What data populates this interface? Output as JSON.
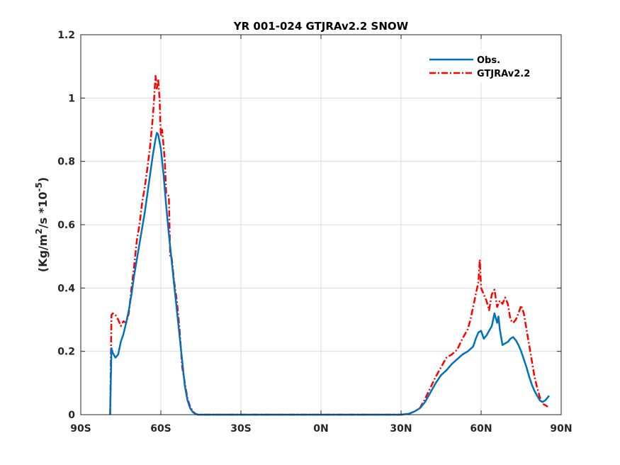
{
  "chart_data": {
    "type": "line",
    "title": "YR 001-024 GTJRAv2.2 SNOW",
    "xlabel": "",
    "ylabel": {
      "prefix": "(Kg/m",
      "sup1": "2",
      "mid": "/s *10",
      "sup2": "-5",
      "suffix": ")"
    },
    "xlim": [
      -90,
      90
    ],
    "ylim": [
      0,
      1.2
    ],
    "grid": true,
    "legend_position": "top-right",
    "x_ticks": [
      {
        "value": -90,
        "label": "90S"
      },
      {
        "value": -60,
        "label": "60S"
      },
      {
        "value": -30,
        "label": "30S"
      },
      {
        "value": 0,
        "label": "0N"
      },
      {
        "value": 30,
        "label": "30N"
      },
      {
        "value": 60,
        "label": "60N"
      },
      {
        "value": 90,
        "label": "90N"
      }
    ],
    "y_ticks": [
      {
        "value": 0,
        "label": "0"
      },
      {
        "value": 0.2,
        "label": "0.2"
      },
      {
        "value": 0.4,
        "label": "0.4"
      },
      {
        "value": 0.6,
        "label": "0.6"
      },
      {
        "value": 0.8,
        "label": "0.8"
      },
      {
        "value": 1.0,
        "label": "1"
      },
      {
        "value": 1.2,
        "label": "1.2"
      }
    ],
    "series": [
      {
        "name": "Obs.",
        "color": "#0072BD",
        "style": "solid",
        "points": [
          [
            -79,
            0
          ],
          [
            -78.5,
            0.21
          ],
          [
            -78,
            0.195
          ],
          [
            -77,
            0.18
          ],
          [
            -76,
            0.19
          ],
          [
            -75,
            0.23
          ],
          [
            -74,
            0.255
          ],
          [
            -73,
            0.29
          ],
          [
            -72,
            0.33
          ],
          [
            -71,
            0.38
          ],
          [
            -70,
            0.44
          ],
          [
            -69,
            0.49
          ],
          [
            -68,
            0.54
          ],
          [
            -67,
            0.59
          ],
          [
            -66,
            0.64
          ],
          [
            -65,
            0.7
          ],
          [
            -64,
            0.76
          ],
          [
            -63,
            0.82
          ],
          [
            -62,
            0.87
          ],
          [
            -61.5,
            0.89
          ],
          [
            -61,
            0.885
          ],
          [
            -60,
            0.84
          ],
          [
            -59,
            0.76
          ],
          [
            -58,
            0.66
          ],
          [
            -57,
            0.57
          ],
          [
            -56,
            0.49
          ],
          [
            -55,
            0.41
          ],
          [
            -54,
            0.33
          ],
          [
            -53,
            0.25
          ],
          [
            -52,
            0.17
          ],
          [
            -51,
            0.09
          ],
          [
            -50,
            0.045
          ],
          [
            -49,
            0.02
          ],
          [
            -48,
            0.008
          ],
          [
            -47,
            0.002
          ],
          [
            -46,
            0
          ],
          [
            -30,
            0
          ],
          [
            0,
            0
          ],
          [
            20,
            0
          ],
          [
            30,
            0
          ],
          [
            33,
            0.003
          ],
          [
            35,
            0.01
          ],
          [
            37,
            0.02
          ],
          [
            39,
            0.04
          ],
          [
            41,
            0.07
          ],
          [
            43,
            0.1
          ],
          [
            45,
            0.125
          ],
          [
            47,
            0.14
          ],
          [
            49,
            0.16
          ],
          [
            51,
            0.175
          ],
          [
            53,
            0.19
          ],
          [
            55,
            0.2
          ],
          [
            57,
            0.215
          ],
          [
            58,
            0.24
          ],
          [
            59,
            0.26
          ],
          [
            60,
            0.265
          ],
          [
            61,
            0.24
          ],
          [
            62,
            0.25
          ],
          [
            63,
            0.265
          ],
          [
            64,
            0.28
          ],
          [
            65,
            0.32
          ],
          [
            66,
            0.29
          ],
          [
            66.5,
            0.31
          ],
          [
            67,
            0.27
          ],
          [
            68,
            0.22
          ],
          [
            69,
            0.225
          ],
          [
            70,
            0.23
          ],
          [
            71,
            0.24
          ],
          [
            72,
            0.245
          ],
          [
            73,
            0.235
          ],
          [
            74,
            0.22
          ],
          [
            75,
            0.2
          ],
          [
            76,
            0.175
          ],
          [
            77,
            0.15
          ],
          [
            78,
            0.12
          ],
          [
            79,
            0.095
          ],
          [
            80,
            0.075
          ],
          [
            81,
            0.06
          ],
          [
            82,
            0.045
          ],
          [
            83,
            0.04
          ],
          [
            84,
            0.045
          ],
          [
            85,
            0.055
          ],
          [
            85.5,
            0.06
          ]
        ]
      },
      {
        "name": "GTJRAv2.2",
        "color": "#FF0000",
        "style": "dashdot",
        "points": [
          [
            -79,
            0
          ],
          [
            -78.5,
            0.315
          ],
          [
            -78,
            0.32
          ],
          [
            -77,
            0.315
          ],
          [
            -76,
            0.3
          ],
          [
            -75,
            0.28
          ],
          [
            -74,
            0.295
          ],
          [
            -73,
            0.29
          ],
          [
            -72,
            0.32
          ],
          [
            -71,
            0.4
          ],
          [
            -70,
            0.47
          ],
          [
            -69,
            0.55
          ],
          [
            -68,
            0.6
          ],
          [
            -67,
            0.67
          ],
          [
            -66,
            0.72
          ],
          [
            -65,
            0.78
          ],
          [
            -64,
            0.85
          ],
          [
            -63,
            0.94
          ],
          [
            -62.5,
            1.0
          ],
          [
            -62,
            1.07
          ],
          [
            -61.5,
            1.03
          ],
          [
            -61,
            1.06
          ],
          [
            -60.5,
            1.0
          ],
          [
            -60,
            0.88
          ],
          [
            -59.5,
            0.9
          ],
          [
            -59,
            0.85
          ],
          [
            -58.5,
            0.8
          ],
          [
            -58,
            0.7
          ],
          [
            -57,
            0.69
          ],
          [
            -56.5,
            0.5
          ],
          [
            -56,
            0.5
          ],
          [
            -55,
            0.42
          ],
          [
            -54,
            0.36
          ],
          [
            -53,
            0.27
          ],
          [
            -52,
            0.15
          ],
          [
            -51,
            0.1
          ],
          [
            -50,
            0.05
          ],
          [
            -49,
            0.025
          ],
          [
            -48,
            0.01
          ],
          [
            -47,
            0.003
          ],
          [
            -46,
            0
          ],
          [
            -30,
            0
          ],
          [
            0,
            0
          ],
          [
            20,
            0
          ],
          [
            30,
            0
          ],
          [
            33,
            0.003
          ],
          [
            35,
            0.01
          ],
          [
            37,
            0.02
          ],
          [
            39,
            0.05
          ],
          [
            41,
            0.085
          ],
          [
            43,
            0.12
          ],
          [
            45,
            0.15
          ],
          [
            47,
            0.18
          ],
          [
            49,
            0.19
          ],
          [
            51,
            0.205
          ],
          [
            53,
            0.24
          ],
          [
            55,
            0.27
          ],
          [
            56,
            0.3
          ],
          [
            57,
            0.34
          ],
          [
            58,
            0.38
          ],
          [
            59,
            0.42
          ],
          [
            59.5,
            0.49
          ],
          [
            60,
            0.4
          ],
          [
            61,
            0.38
          ],
          [
            62,
            0.36
          ],
          [
            63,
            0.33
          ],
          [
            64,
            0.38
          ],
          [
            65,
            0.395
          ],
          [
            66,
            0.34
          ],
          [
            67,
            0.36
          ],
          [
            68,
            0.35
          ],
          [
            69,
            0.37
          ],
          [
            70,
            0.35
          ],
          [
            71,
            0.3
          ],
          [
            72,
            0.29
          ],
          [
            73,
            0.3
          ],
          [
            74,
            0.32
          ],
          [
            75,
            0.345
          ],
          [
            76,
            0.32
          ],
          [
            77,
            0.27
          ],
          [
            78,
            0.22
          ],
          [
            79,
            0.17
          ],
          [
            80,
            0.12
          ],
          [
            81,
            0.085
          ],
          [
            82,
            0.055
          ],
          [
            83,
            0.035
          ],
          [
            84,
            0.03
          ],
          [
            85,
            0.025
          ]
        ]
      }
    ]
  }
}
